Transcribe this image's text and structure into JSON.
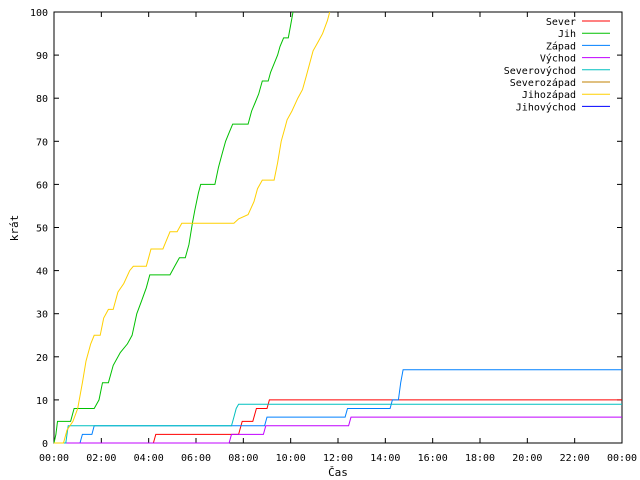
{
  "chart_data": {
    "type": "line",
    "title": "",
    "xlabel": "Čas",
    "ylabel": "krát",
    "xlim": [
      0,
      24
    ],
    "ylim": [
      0,
      100
    ],
    "x_ticks": [
      {
        "value": 0,
        "label": "00:00"
      },
      {
        "value": 2,
        "label": "02:00"
      },
      {
        "value": 4,
        "label": "04:00"
      },
      {
        "value": 6,
        "label": "06:00"
      },
      {
        "value": 8,
        "label": "08:00"
      },
      {
        "value": 10,
        "label": "10:00"
      },
      {
        "value": 12,
        "label": "12:00"
      },
      {
        "value": 14,
        "label": "14:00"
      },
      {
        "value": 16,
        "label": "16:00"
      },
      {
        "value": 18,
        "label": "18:00"
      },
      {
        "value": 20,
        "label": "20:00"
      },
      {
        "value": 22,
        "label": "22:00"
      },
      {
        "value": 24,
        "label": "00:00"
      }
    ],
    "y_ticks": [
      {
        "value": 0,
        "label": "0"
      },
      {
        "value": 10,
        "label": "10"
      },
      {
        "value": 20,
        "label": "20"
      },
      {
        "value": 30,
        "label": "30"
      },
      {
        "value": 40,
        "label": "40"
      },
      {
        "value": 50,
        "label": "50"
      },
      {
        "value": 60,
        "label": "60"
      },
      {
        "value": 70,
        "label": "70"
      },
      {
        "value": 80,
        "label": "80"
      },
      {
        "value": 90,
        "label": "90"
      },
      {
        "value": 100,
        "label": "100"
      }
    ],
    "grid": false,
    "legend_position": "top-right",
    "series": [
      {
        "name": "Sever",
        "color": "#ff0000",
        "points": [
          [
            0,
            0
          ],
          [
            4.2,
            0
          ],
          [
            4.3,
            2
          ],
          [
            7.8,
            2
          ],
          [
            7.95,
            5
          ],
          [
            8.4,
            5
          ],
          [
            8.55,
            8
          ],
          [
            9.0,
            8
          ],
          [
            9.1,
            10
          ],
          [
            24,
            10
          ]
        ]
      },
      {
        "name": "Jih",
        "color": "#00c000",
        "points": [
          [
            0,
            0
          ],
          [
            0.08,
            2
          ],
          [
            0.15,
            5
          ],
          [
            0.7,
            5
          ],
          [
            0.85,
            8
          ],
          [
            1.7,
            8
          ],
          [
            1.9,
            10
          ],
          [
            2.05,
            14
          ],
          [
            2.3,
            14
          ],
          [
            2.5,
            18
          ],
          [
            2.8,
            21
          ],
          [
            3.1,
            23
          ],
          [
            3.3,
            25
          ],
          [
            3.5,
            30
          ],
          [
            3.7,
            33
          ],
          [
            3.9,
            36
          ],
          [
            4.05,
            39
          ],
          [
            4.9,
            39
          ],
          [
            5.1,
            41
          ],
          [
            5.3,
            43
          ],
          [
            5.55,
            43
          ],
          [
            5.7,
            46
          ],
          [
            5.85,
            51
          ],
          [
            5.95,
            54
          ],
          [
            6.1,
            58
          ],
          [
            6.2,
            60
          ],
          [
            6.8,
            60
          ],
          [
            6.95,
            64
          ],
          [
            7.1,
            67
          ],
          [
            7.25,
            70
          ],
          [
            7.4,
            72
          ],
          [
            7.55,
            74
          ],
          [
            8.2,
            74
          ],
          [
            8.35,
            77
          ],
          [
            8.5,
            79
          ],
          [
            8.65,
            81
          ],
          [
            8.8,
            84
          ],
          [
            9.05,
            84
          ],
          [
            9.15,
            86
          ],
          [
            9.3,
            88
          ],
          [
            9.45,
            90
          ],
          [
            9.55,
            92
          ],
          [
            9.7,
            94
          ],
          [
            9.9,
            94
          ],
          [
            10.0,
            97
          ],
          [
            10.1,
            100
          ]
        ]
      },
      {
        "name": "Západ",
        "color": "#0080ff",
        "points": [
          [
            0,
            0
          ],
          [
            1.1,
            0
          ],
          [
            1.2,
            2
          ],
          [
            1.6,
            2
          ],
          [
            1.7,
            4
          ],
          [
            8.9,
            4
          ],
          [
            9.0,
            6
          ],
          [
            12.3,
            6
          ],
          [
            12.4,
            8
          ],
          [
            14.2,
            8
          ],
          [
            14.3,
            10
          ],
          [
            14.55,
            10
          ],
          [
            14.65,
            14
          ],
          [
            14.75,
            17
          ],
          [
            24,
            17
          ]
        ]
      },
      {
        "name": "Východ",
        "color": "#c000ff",
        "points": [
          [
            0,
            0
          ],
          [
            7.4,
            0
          ],
          [
            7.5,
            2
          ],
          [
            8.85,
            2
          ],
          [
            8.95,
            4
          ],
          [
            12.45,
            4
          ],
          [
            12.55,
            6
          ],
          [
            24,
            6
          ]
        ]
      },
      {
        "name": "Severovýchod",
        "color": "#00c0c0",
        "points": [
          [
            0,
            0
          ],
          [
            0.5,
            0
          ],
          [
            0.6,
            4
          ],
          [
            7.5,
            4
          ],
          [
            7.6,
            6
          ],
          [
            7.7,
            8
          ],
          [
            7.8,
            9
          ],
          [
            24,
            9
          ]
        ]
      },
      {
        "name": "Severozápad",
        "color": "#c08000",
        "points": []
      },
      {
        "name": "Jihozápad",
        "color": "#ffd000",
        "points": [
          [
            0,
            0
          ],
          [
            0.4,
            0
          ],
          [
            0.55,
            3
          ],
          [
            0.8,
            5
          ],
          [
            1.0,
            8
          ],
          [
            1.2,
            14
          ],
          [
            1.35,
            19
          ],
          [
            1.55,
            23
          ],
          [
            1.7,
            25
          ],
          [
            1.95,
            25
          ],
          [
            2.1,
            29
          ],
          [
            2.3,
            31
          ],
          [
            2.5,
            31
          ],
          [
            2.7,
            35
          ],
          [
            2.95,
            37
          ],
          [
            3.2,
            40
          ],
          [
            3.35,
            41
          ],
          [
            3.9,
            41
          ],
          [
            4.1,
            45
          ],
          [
            4.6,
            45
          ],
          [
            4.75,
            47
          ],
          [
            4.9,
            49
          ],
          [
            5.2,
            49
          ],
          [
            5.4,
            51
          ],
          [
            7.6,
            51
          ],
          [
            7.8,
            52
          ],
          [
            8.2,
            53
          ],
          [
            8.45,
            56
          ],
          [
            8.6,
            59
          ],
          [
            8.8,
            61
          ],
          [
            9.3,
            61
          ],
          [
            9.45,
            65
          ],
          [
            9.6,
            70
          ],
          [
            9.75,
            73
          ],
          [
            9.85,
            75
          ],
          [
            10.05,
            77
          ],
          [
            10.3,
            80
          ],
          [
            10.5,
            82
          ],
          [
            10.65,
            85
          ],
          [
            10.8,
            88
          ],
          [
            10.95,
            91
          ],
          [
            11.15,
            93
          ],
          [
            11.35,
            95
          ],
          [
            11.55,
            98
          ],
          [
            11.65,
            100
          ]
        ]
      },
      {
        "name": "Jihovýchod",
        "color": "#0000ff",
        "points": []
      }
    ]
  }
}
